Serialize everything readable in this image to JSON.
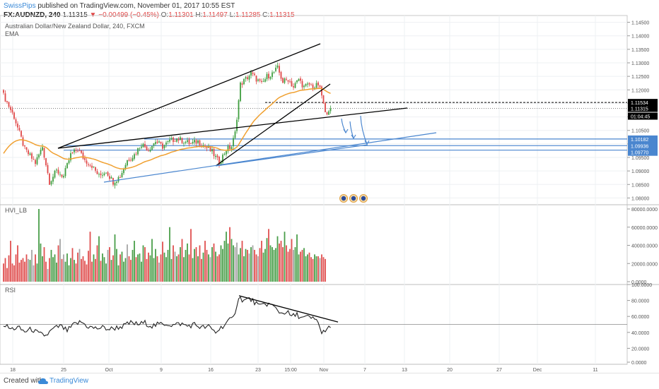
{
  "header": {
    "publisher": "SwissPips",
    "published_text": "published on TradingView.com, November 01, 2017 10:55 EST",
    "symbol": "FX:AUDNZD, 240",
    "price": "1.11315",
    "change": "−0.00499 (−0.45%)",
    "open_label": "O:",
    "open": "1.11301",
    "high_label": "H:",
    "high": "1.11497",
    "low_label": "L:",
    "low": "1.11285",
    "close_label": "C:",
    "close": "1.11315"
  },
  "price_pane": {
    "title": "Australian Dollar/New Zealand Dollar, 240, FXCM",
    "indicator": "EMA",
    "axis_ticks": [
      "1.14500",
      "1.14000",
      "1.13500",
      "1.13000",
      "1.12500",
      "1.12000",
      "1.11500",
      "1.11000",
      "1.10500",
      "1.10000",
      "1.09500",
      "1.09000",
      "1.08500",
      "1.08000"
    ],
    "price_tags": [
      {
        "value": "1.11534",
        "bg": "#000000"
      },
      {
        "value": "1.11315",
        "bg": "#000000"
      },
      {
        "value": "01:04:45",
        "bg": "#000000"
      },
      {
        "value": "1.10182",
        "bg": "#4a86cf"
      },
      {
        "value": "1.09936",
        "bg": "#4a86cf"
      },
      {
        "value": "1.09770",
        "bg": "#4a86cf"
      }
    ]
  },
  "volume_pane": {
    "title": "HVI_LB",
    "axis_ticks": [
      "80000.0000",
      "60000.0000",
      "40000.0000",
      "20000.0000",
      "0.0000"
    ]
  },
  "rsi_pane": {
    "title": "RSI",
    "axis_ticks": [
      "100.0000",
      "80.0000",
      "60.0000",
      "40.0000",
      "20.0000",
      "0.0000"
    ]
  },
  "time_axis": {
    "labels": [
      "18",
      "25",
      "Oct",
      "9",
      "16",
      "23",
      "15:00",
      "Nov",
      "7",
      "13",
      "20",
      "27",
      "Dec",
      "11"
    ]
  },
  "footer": {
    "created_with": "Created with",
    "brand": "TradingView"
  },
  "colors": {
    "up": "#3f9e3f",
    "down": "#e04848",
    "ema": "#f0a030",
    "blue_line": "#4a86cf",
    "trend": "#000000"
  },
  "chart_data": [
    {
      "type": "candlestick",
      "title": "Australian Dollar/New Zealand Dollar, 240, FXCM",
      "ylim": [
        1.0775,
        1.1475
      ],
      "horizontal_levels": [
        1.11534,
        1.11315,
        1.10182,
        1.09936,
        1.0977
      ],
      "keypoints": [
        [
          0,
          1.118
        ],
        [
          6,
          1.11
        ],
        [
          12,
          1.098
        ],
        [
          18,
          1.093
        ],
        [
          22,
          1.099
        ],
        [
          26,
          1.086
        ],
        [
          30,
          1.09
        ],
        [
          34,
          1.088
        ],
        [
          38,
          1.096
        ],
        [
          42,
          1.098
        ],
        [
          46,
          1.094
        ],
        [
          50,
          1.092
        ],
        [
          54,
          1.088
        ],
        [
          58,
          1.09
        ],
        [
          62,
          1.086
        ],
        [
          66,
          1.088
        ],
        [
          70,
          1.094
        ],
        [
          74,
          1.096
        ],
        [
          78,
          1.1
        ],
        [
          82,
          1.098
        ],
        [
          86,
          1.101
        ],
        [
          90,
          1.099
        ],
        [
          94,
          1.101
        ],
        [
          98,
          1.102
        ],
        [
          102,
          1.101
        ],
        [
          106,
          1.1
        ],
        [
          110,
          1.101
        ],
        [
          114,
          1.099
        ],
        [
          118,
          1.097
        ],
        [
          122,
          1.093
        ],
        [
          126,
          1.098
        ],
        [
          129,
          1.099
        ],
        [
          131,
          1.104
        ],
        [
          134,
          1.122
        ],
        [
          137,
          1.124
        ],
        [
          140,
          1.126
        ],
        [
          143,
          1.124
        ],
        [
          146,
          1.122
        ],
        [
          149,
          1.125
        ],
        [
          152,
          1.126
        ],
        [
          155,
          1.128
        ],
        [
          158,
          1.123
        ],
        [
          161,
          1.124
        ],
        [
          164,
          1.121
        ],
        [
          167,
          1.124
        ],
        [
          170,
          1.121
        ],
        [
          173,
          1.122
        ],
        [
          176,
          1.121
        ],
        [
          178,
          1.122
        ],
        [
          180,
          1.118
        ],
        [
          182,
          1.111
        ],
        [
          184,
          1.113
        ],
        [
          185,
          1.11315
        ]
      ]
    },
    {
      "type": "bar",
      "title": "HVI_LB",
      "ylim": [
        0,
        80000
      ],
      "values": [
        20000,
        26000,
        15000,
        29000,
        45000,
        20000,
        18000,
        30000,
        40000,
        21000,
        24000,
        26000,
        22000,
        30000,
        25000,
        24000,
        35000,
        18000,
        30000,
        20000,
        80000,
        42000,
        28000,
        38000,
        22000,
        14000,
        26000,
        35000,
        27000,
        30000,
        21000,
        40000,
        47000,
        25000,
        30000,
        22000,
        31000,
        18000,
        26000,
        37000,
        24000,
        20000,
        32000,
        36000,
        25000,
        28000,
        23000,
        19000,
        34000,
        55000,
        22000,
        30000,
        25000,
        40000,
        50000,
        23000,
        31000,
        27000,
        20000,
        35000,
        38000,
        24000,
        29000,
        52000,
        36000,
        18000,
        30000,
        33000,
        22000,
        26000,
        41000,
        28000,
        24000,
        35000,
        45000,
        27000,
        30000,
        31000,
        22000,
        40000,
        38000,
        25000,
        32000,
        29000,
        47000,
        26000,
        36000,
        28000,
        21000,
        30000,
        44000,
        32000,
        27000,
        35000,
        60000,
        25000,
        40000,
        33000,
        28000,
        30000,
        38000,
        47000,
        27000,
        35000,
        42000,
        30000,
        58000,
        26000,
        36000,
        38000,
        28000,
        40000,
        25000,
        32000,
        45000,
        35000,
        30000,
        27000,
        38000,
        42000,
        33000,
        28000,
        30000,
        40000,
        36000,
        45000,
        55000,
        42000,
        60000,
        47000,
        40000,
        38000,
        43000,
        30000,
        37000,
        45000,
        28000,
        36000,
        35000,
        31000,
        38000,
        40000,
        35000,
        30000,
        28000,
        37000,
        45000,
        32000,
        36000,
        48000,
        58000,
        40000,
        38000,
        35000,
        37000,
        50000,
        42000,
        45000,
        38000,
        55000,
        40000,
        33000,
        36000,
        47000,
        35000,
        38000,
        52000,
        30000,
        33000,
        35000,
        37000,
        28000,
        30000,
        32000,
        27000,
        25000,
        30000,
        28000,
        28000,
        26000,
        30000,
        27000,
        25000
      ],
      "colors": "green when the corresponding candle closes up, red when down, grey for neutral"
    },
    {
      "type": "line",
      "title": "RSI",
      "ylim": [
        0,
        100
      ],
      "horizontal_levels": [
        50
      ],
      "keypoints": [
        [
          0,
          50
        ],
        [
          4,
          44
        ],
        [
          8,
          46
        ],
        [
          12,
          41
        ],
        [
          16,
          44
        ],
        [
          20,
          38
        ],
        [
          24,
          36
        ],
        [
          28,
          44
        ],
        [
          32,
          48
        ],
        [
          36,
          42
        ],
        [
          40,
          50
        ],
        [
          44,
          53
        ],
        [
          48,
          47
        ],
        [
          52,
          45
        ],
        [
          56,
          46
        ],
        [
          60,
          44
        ],
        [
          64,
          46
        ],
        [
          68,
          48
        ],
        [
          72,
          52
        ],
        [
          76,
          50
        ],
        [
          80,
          52
        ],
        [
          84,
          48
        ],
        [
          88,
          50
        ],
        [
          92,
          51
        ],
        [
          96,
          49
        ],
        [
          100,
          51
        ],
        [
          104,
          48
        ],
        [
          108,
          50
        ],
        [
          112,
          46
        ],
        [
          116,
          47
        ],
        [
          120,
          40
        ],
        [
          124,
          48
        ],
        [
          128,
          55
        ],
        [
          130,
          58
        ],
        [
          133,
          84
        ],
        [
          136,
          80
        ],
        [
          139,
          82
        ],
        [
          142,
          78
        ],
        [
          145,
          72
        ],
        [
          148,
          76
        ],
        [
          151,
          75
        ],
        [
          154,
          70
        ],
        [
          157,
          64
        ],
        [
          160,
          66
        ],
        [
          163,
          60
        ],
        [
          166,
          62
        ],
        [
          169,
          58
        ],
        [
          172,
          59
        ],
        [
          175,
          57
        ],
        [
          178,
          54
        ],
        [
          180,
          37
        ],
        [
          182,
          44
        ],
        [
          184,
          45
        ],
        [
          185,
          44
        ]
      ]
    }
  ]
}
